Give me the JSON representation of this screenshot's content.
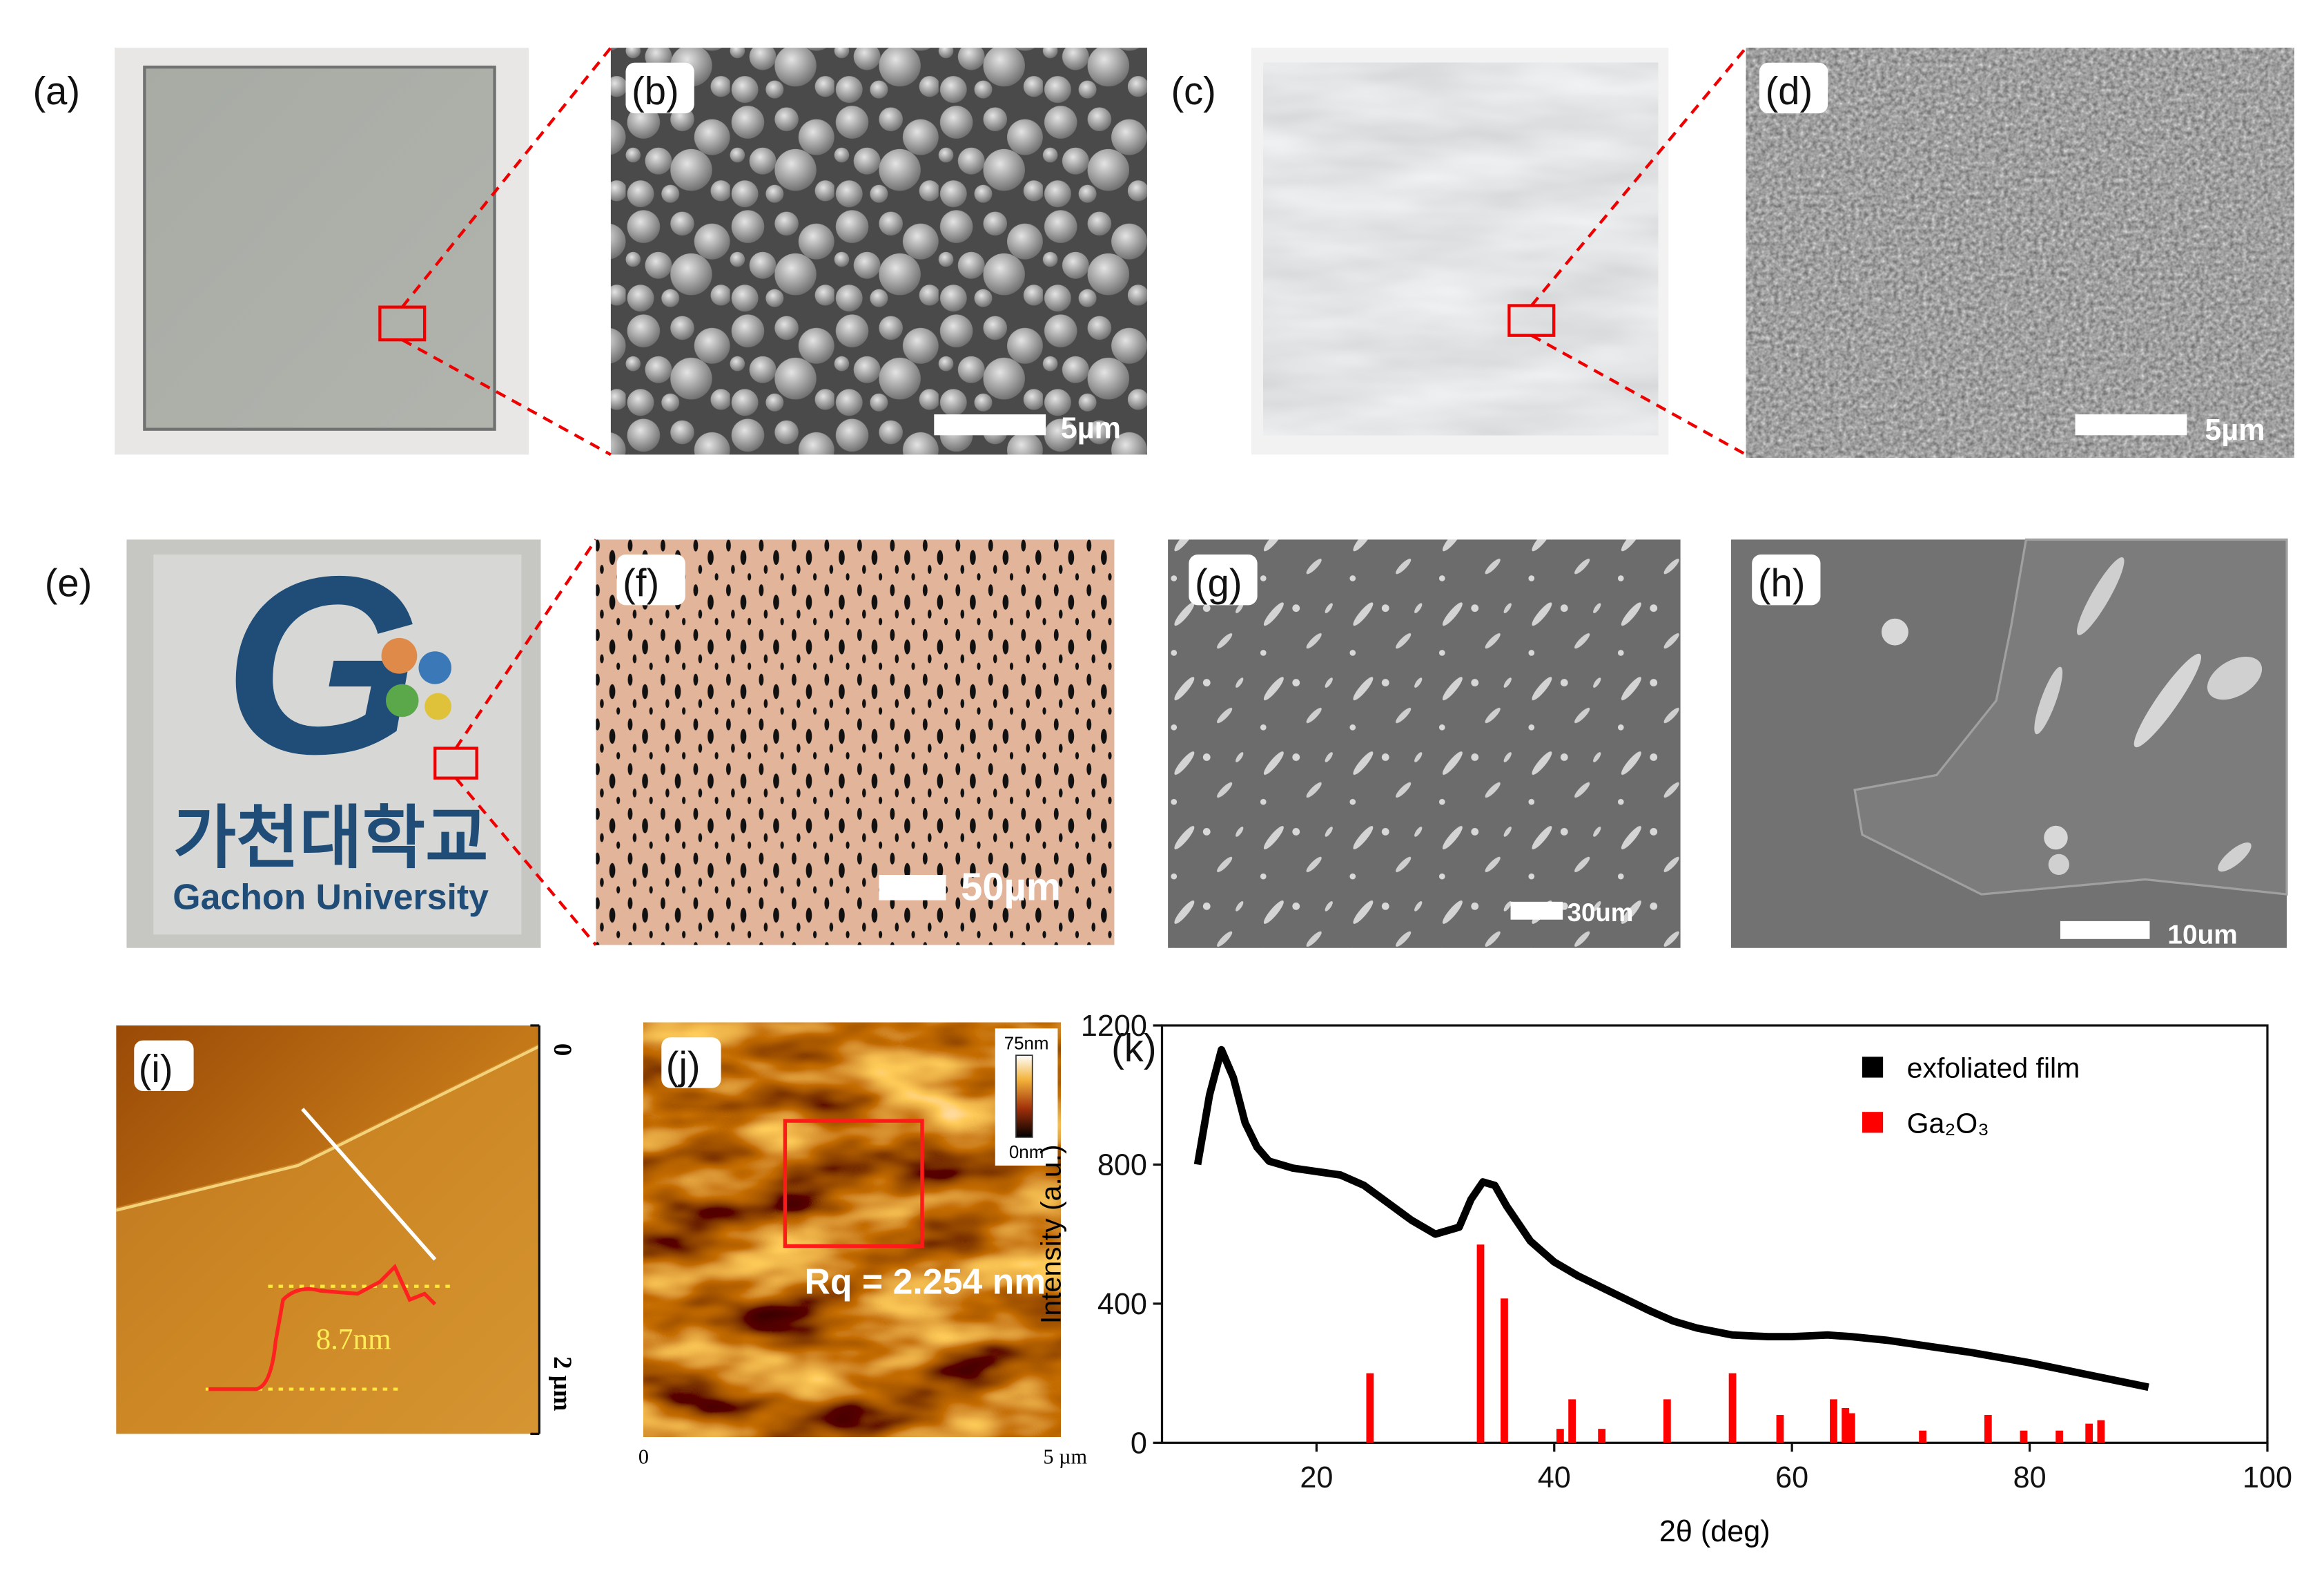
{
  "panels": [
    {
      "label": "(a)"
    },
    {
      "label": "(b)",
      "scale_bar": "5µm"
    },
    {
      "label": "(c)"
    },
    {
      "label": "(d)",
      "scale_bar": "5µm"
    },
    {
      "label": "(e)",
      "logo_text": "가천대학교",
      "logo_subtext": "Gachon University"
    },
    {
      "label": "(f)",
      "scale_bar": "50µm"
    },
    {
      "label": "(g)",
      "scale_bar": "30um"
    },
    {
      "label": "(h)",
      "scale_bar": "10um"
    },
    {
      "label": "(i)",
      "step_height": "8.7nm",
      "axis_start": "0",
      "axis_end": "2 µm"
    },
    {
      "label": "(j)",
      "roughness": "Rq = 2.254 nm",
      "axis_start": "0",
      "axis_end": "5 µm",
      "colorbar_max": "75nm",
      "colorbar_min": "0nm"
    }
  ],
  "chart_data": {
    "type": "line",
    "label": "(k)",
    "xlabel": "2θ (deg)",
    "ylabel": "Intensity (a.u.)",
    "xlim": [
      7,
      100
    ],
    "xticks": [
      20,
      40,
      60,
      80,
      100
    ],
    "ylim": [
      0,
      1200
    ],
    "yticks": [
      0,
      400,
      800,
      1200
    ],
    "legend": "upper right",
    "series": [
      {
        "name": "exfoliated film",
        "color": "#000000",
        "type": "line",
        "x": [
          10,
          11,
          12,
          13,
          14,
          15,
          16,
          18,
          20,
          22,
          24,
          26,
          28,
          30,
          32,
          33,
          34,
          35,
          36,
          38,
          40,
          42,
          45,
          48,
          50,
          52,
          55,
          58,
          60,
          63,
          65,
          68,
          70,
          75,
          80,
          85,
          90
        ],
        "values": [
          800,
          1000,
          1130,
          1050,
          920,
          850,
          810,
          790,
          780,
          770,
          740,
          690,
          640,
          600,
          620,
          700,
          750,
          740,
          680,
          580,
          520,
          480,
          430,
          380,
          350,
          330,
          310,
          305,
          305,
          310,
          305,
          295,
          285,
          260,
          230,
          195,
          160
        ]
      },
      {
        "name": "Ga₂O₃",
        "color": "#ff0000",
        "type": "bar",
        "x": [
          24.5,
          33.8,
          35.8,
          40.5,
          41.5,
          44,
          49.5,
          55,
          59,
          63.5,
          64.5,
          65,
          71,
          76.5,
          79.5,
          82.5,
          85,
          86
        ],
        "values": [
          200,
          570,
          415,
          40,
          125,
          40,
          125,
          200,
          80,
          125,
          100,
          85,
          35,
          80,
          35,
          35,
          55,
          65
        ]
      }
    ]
  }
}
